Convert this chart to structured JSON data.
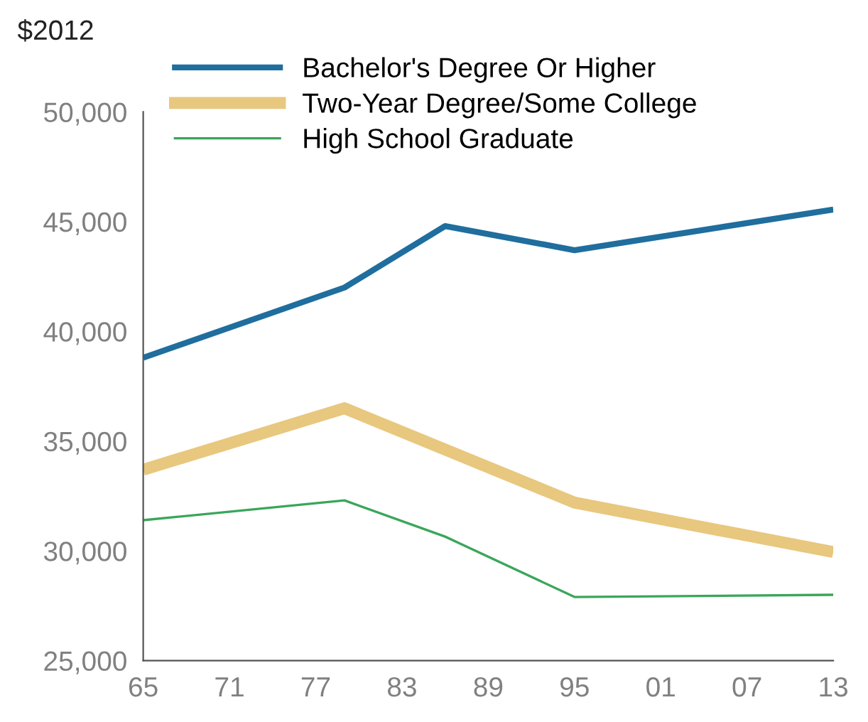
{
  "chart_data": {
    "type": "line",
    "ylabel": "$2012",
    "xlim": [
      1965,
      2013
    ],
    "xticks": [
      {
        "value": 1965,
        "label": "65"
      },
      {
        "value": 1971,
        "label": "71"
      },
      {
        "value": 1977,
        "label": "77"
      },
      {
        "value": 1983,
        "label": "83"
      },
      {
        "value": 1989,
        "label": "89"
      },
      {
        "value": 1995,
        "label": "95"
      },
      {
        "value": 2001,
        "label": "01"
      },
      {
        "value": 2007,
        "label": "07"
      },
      {
        "value": 2013,
        "label": "13"
      }
    ],
    "ylim": [
      25000,
      50000
    ],
    "yticks": [
      {
        "value": 25000,
        "label": "25,000"
      },
      {
        "value": 30000,
        "label": "30,000"
      },
      {
        "value": 35000,
        "label": "35,000"
      },
      {
        "value": 40000,
        "label": "40,000"
      },
      {
        "value": 45000,
        "label": "45,000"
      },
      {
        "value": 50000,
        "label": "50,000"
      }
    ],
    "grid": false,
    "legend": "top left",
    "marker": "none",
    "line_style": "solid",
    "series": [
      {
        "name": "Bachelor's Degree Or Higher",
        "color": "#1f6e9e",
        "x": [
          1965,
          1979,
          1986,
          1995,
          2013
        ],
        "values": [
          38800,
          42000,
          44800,
          43700,
          45550
        ]
      },
      {
        "name": "Two-Year Degree/Some College",
        "color": "#e8c77e",
        "x": [
          1965,
          1979,
          1995,
          2013
        ],
        "values": [
          33700,
          36500,
          32200,
          29950
        ]
      },
      {
        "name": "High School Graduate",
        "color": "#3aa65a",
        "x": [
          1965,
          1979,
          1986,
          1995,
          2013
        ],
        "values": [
          31400,
          32300,
          30650,
          27900,
          28000
        ]
      }
    ]
  }
}
